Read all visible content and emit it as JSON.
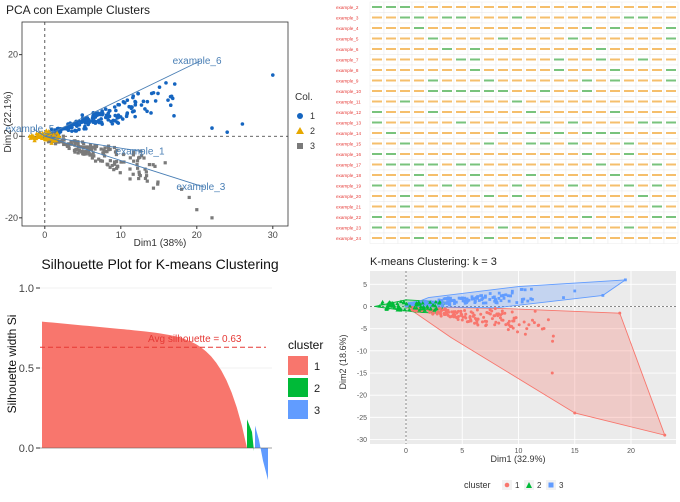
{
  "charts": {
    "pca": {
      "title": "PCA con Example Clusters",
      "xlabel": "Dim1 (38%)",
      "ylabel": "Dim2 (22.1%)",
      "legend_title": "Col.",
      "legend": [
        {
          "label": "1",
          "color": "#1565c0",
          "shape": "circle"
        },
        {
          "label": "2",
          "color": "#e6a800",
          "shape": "triangle"
        },
        {
          "label": "3",
          "color": "#7a7a7a",
          "shape": "square"
        }
      ],
      "xlim": [
        -3,
        32
      ],
      "ylim": [
        -22,
        28
      ],
      "xticks": [
        "0",
        "10",
        "20",
        "30"
      ],
      "xtick_values": [
        0,
        10,
        20,
        30
      ],
      "yticks": [
        "20",
        "0",
        "-20"
      ],
      "ytick_values": [
        20,
        0,
        -20
      ],
      "arrows": [
        {
          "label": "example_6",
          "x": 20.5,
          "y": 18.5
        },
        {
          "label": "example_3",
          "x": 21,
          "y": -12.5
        },
        {
          "label": "example_1",
          "x": 13,
          "y": -3.8
        },
        {
          "label": "example_5",
          "x": -1.5,
          "y": 1.8
        }
      ]
    },
    "silhouette": {
      "title": "Silhouette Plot for K-means Clustering",
      "ylabel": "Silhouette width Si",
      "yticks": [
        "1.0",
        "0.5",
        "0.0"
      ],
      "ytick_values": [
        1.0,
        0.5,
        0.0
      ],
      "avg_label": "Avg silhouette = 0.63",
      "avg_value": 0.63,
      "legend_title": "cluster",
      "legend": [
        {
          "label": "1",
          "color": "#f8766d"
        },
        {
          "label": "2",
          "color": "#00ba38"
        },
        {
          "label": "3",
          "color": "#619cff"
        }
      ]
    },
    "kmeans": {
      "title": "K-means Clustering: k = 3",
      "xlabel": "Dim1 (32.9%)",
      "ylabel": "Dim2 (18.6%)",
      "xlim": [
        -3.2,
        24
      ],
      "ylim": [
        -31,
        8
      ],
      "xticks": [
        "0",
        "5",
        "10",
        "15",
        "20"
      ],
      "xtick_values": [
        0,
        5,
        10,
        15,
        20
      ],
      "yticks": [
        "5",
        "0",
        "-5",
        "-10",
        "-15",
        "-20",
        "-25",
        "-30"
      ],
      "ytick_values": [
        5,
        0,
        -5,
        -10,
        -15,
        -20,
        -25,
        -30
      ],
      "legend_title": "cluster",
      "legend": [
        {
          "label": "1",
          "color": "#f8766d"
        },
        {
          "label": "2",
          "color": "#00ba38"
        },
        {
          "label": "3",
          "color": "#619cff"
        }
      ],
      "hulls": {
        "1": [
          [
            0,
            0
          ],
          [
            9,
            -0.5
          ],
          [
            19,
            -1.5
          ],
          [
            23,
            -29
          ],
          [
            15,
            -24
          ],
          [
            4,
            -7
          ]
        ],
        "2": [
          [
            -2.8,
            0
          ],
          [
            0,
            1.5
          ],
          [
            3.5,
            1
          ],
          [
            3,
            -1.5
          ],
          [
            1,
            -1.3
          ]
        ],
        "3": [
          [
            0,
            0
          ],
          [
            2,
            2
          ],
          [
            10,
            4.5
          ],
          [
            19.5,
            6
          ],
          [
            17.5,
            2.5
          ],
          [
            8,
            -0.3
          ]
        ]
      }
    },
    "heatmap": {
      "rows": [
        "example_2",
        "example_3",
        "example_4",
        "example_5",
        "example_6",
        "example_7",
        "example_8",
        "example_9",
        "example_10",
        "example_11",
        "example_12",
        "example_13",
        "example_14",
        "example_15",
        "example_16",
        "example_17",
        "example_18",
        "example_19",
        "example_20",
        "example_21",
        "example_22",
        "example_23",
        "example_24"
      ]
    }
  }
}
